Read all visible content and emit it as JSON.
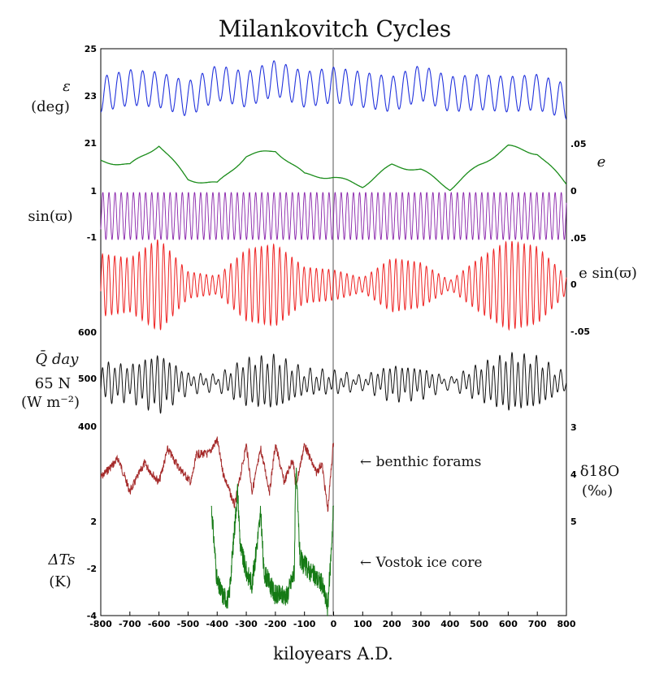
{
  "title": "Milankovitch Cycles",
  "chart_data": {
    "type": "line",
    "xlabel": "kiloyears A.D.",
    "xlim": [
      -800,
      800
    ],
    "xticks": [
      "-800",
      "-700",
      "-600",
      "-500",
      "-400",
      "-300",
      "-200",
      "-100",
      "0",
      "100",
      "200",
      "300",
      "400",
      "500",
      "600",
      "700",
      "800"
    ],
    "colors": {
      "obliquity": "#2233dd",
      "eccentricity": "#1a8c1a",
      "sin_perihelion": "#8822aa",
      "precession": "#ee2222",
      "insolation": "#111111",
      "benthic": "#a52a2a",
      "vostok": "#157a15"
    },
    "panels": [
      {
        "key": "obliquity",
        "label": "ε",
        "sublabel": "(deg)",
        "left_ticks": [
          "25",
          "23",
          "21"
        ],
        "approx_range": [
          22.1,
          24.5
        ],
        "series": [
          {
            "x": [
              -800,
              -700,
              -600,
              -500,
              -400,
              -300,
              -200,
              -100,
              0,
              100,
              200,
              300,
              400,
              500,
              600,
              700,
              800
            ],
            "y": [
              23.2,
              23.5,
              23.4,
              23.0,
              23.7,
              23.4,
              23.9,
              23.4,
              23.6,
              23.4,
              23.2,
              23.7,
              23.2,
              23.3,
              23.2,
              23.3,
              22.9
            ]
          }
        ],
        "dominant_period_kyr": 41
      },
      {
        "key": "eccentricity",
        "right_label": "e",
        "right_ticks": [
          ".05",
          "0"
        ],
        "approx_range": [
          0.0,
          0.055
        ],
        "series": [
          {
            "x": [
              -800,
              -700,
              -600,
              -500,
              -400,
              -300,
              -200,
              -100,
              0,
              100,
              200,
              300,
              400,
              500,
              600,
              700,
              800
            ],
            "y": [
              0.035,
              0.03,
              0.052,
              0.015,
              0.01,
              0.04,
              0.046,
              0.02,
              0.017,
              0.008,
              0.03,
              0.025,
              0.005,
              0.03,
              0.05,
              0.043,
              0.01
            ]
          }
        ]
      },
      {
        "key": "sin_perihelion",
        "label": "sin(ϖ)",
        "left_ticks": [
          "1",
          "-1"
        ],
        "approx_range": [
          -1,
          1
        ],
        "dominant_period_kyr": 21
      },
      {
        "key": "precession",
        "right_label": "e sin(ϖ)",
        "right_ticks": [
          ".05",
          "0",
          "-.05"
        ],
        "approx_range": [
          -0.055,
          0.055
        ],
        "dominant_period_kyr": 21
      },
      {
        "key": "insolation",
        "label": "Q̄ day",
        "sublabel": "65 N",
        "units": "(W m⁻²)",
        "left_ticks": [
          "600",
          "500",
          "400"
        ],
        "approx_range": [
          440,
          560
        ],
        "dominant_period_kyr": 21
      },
      {
        "key": "benthic",
        "right_label": "δ18O",
        "right_units": "(‰)",
        "right_ticks": [
          "3",
          "4",
          "5"
        ],
        "annotation": "← benthic forams",
        "x_range": [
          -800,
          0
        ],
        "series": [
          {
            "x": [
              -800,
              -740,
              -700,
              -650,
              -600,
              -570,
              -530,
              -490,
              -470,
              -430,
              -400,
              -380,
              -340,
              -300,
              -280,
              -250,
              -220,
              -200,
              -170,
              -140,
              -130,
              -100,
              -60,
              -40,
              -20,
              0
            ],
            "y": [
              4.0,
              3.6,
              4.3,
              3.7,
              4.1,
              3.4,
              3.8,
              4.1,
              3.5,
              3.5,
              3.2,
              3.9,
              4.6,
              3.3,
              4.3,
              3.4,
              4.3,
              3.3,
              4.1,
              3.6,
              4.2,
              3.3,
              3.9,
              3.7,
              4.7,
              3.2
            ]
          }
        ]
      },
      {
        "key": "vostok",
        "label": "ΔTs",
        "sublabel": "(K)",
        "left_ticks": [
          "2",
          "-2",
          "-4"
        ],
        "annotation": "← Vostok ice core",
        "x_range": [
          -420,
          0
        ],
        "series": [
          {
            "x": [
              -420,
              -400,
              -380,
              -360,
              -330,
              -320,
              -300,
              -280,
              -250,
              -240,
              -200,
              -160,
              -135,
              -130,
              -115,
              -80,
              -40,
              -20,
              -10,
              0
            ],
            "y": [
              0.8,
              -2.5,
              -3.0,
              -3.2,
              1.5,
              -1.0,
              -2.0,
              -2.5,
              0.5,
              -2.0,
              -3.0,
              -3.0,
              -2.0,
              2.5,
              -1.5,
              -2.0,
              -2.5,
              -3.5,
              -1.5,
              0.8
            ]
          }
        ]
      }
    ]
  }
}
